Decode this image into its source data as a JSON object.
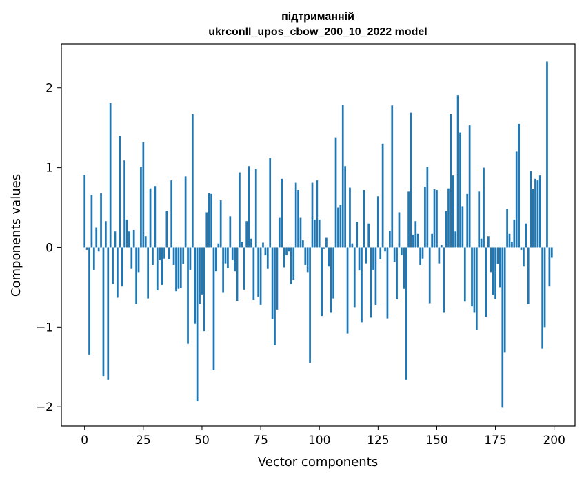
{
  "chart_data": {
    "type": "bar",
    "title": "підтриманній",
    "subtitle": "ukrconll_upos_cbow_200_10_2022 model",
    "xlabel": "Vector components",
    "ylabel": "Components values",
    "xlim": [
      -9.9,
      208.9
    ],
    "ylim": [
      -2.24,
      2.55
    ],
    "xticks": [
      0,
      25,
      50,
      75,
      100,
      125,
      150,
      175,
      200
    ],
    "yticks": [
      -2,
      -1,
      0,
      1,
      2
    ],
    "ytick_labels": [
      "−2",
      "−1",
      "0",
      "1",
      "2"
    ],
    "grid": false,
    "bar_color": "#1f77b4",
    "values": [
      0.91,
      -0.03,
      -1.35,
      0.66,
      -0.28,
      0.25,
      -0.05,
      0.68,
      -1.62,
      0.33,
      -1.66,
      1.81,
      -0.46,
      0.2,
      -0.63,
      1.4,
      -0.49,
      1.09,
      0.35,
      0.2,
      -0.27,
      0.22,
      -0.71,
      -0.31,
      1.01,
      1.32,
      0.14,
      -0.64,
      0.74,
      -0.22,
      0.77,
      -0.54,
      -0.16,
      -0.47,
      -0.14,
      0.46,
      -0.15,
      0.84,
      -0.22,
      -0.55,
      -0.52,
      -0.51,
      -0.21,
      0.89,
      -1.21,
      -0.28,
      1.67,
      -0.96,
      -1.93,
      -0.71,
      -0.59,
      -1.05,
      0.44,
      0.68,
      0.67,
      -1.54,
      -0.3,
      0.05,
      0.59,
      -0.57,
      -0.2,
      -0.26,
      0.39,
      -0.16,
      -0.3,
      -0.67,
      0.94,
      0.07,
      -0.53,
      0.33,
      1.02,
      0.11,
      -0.66,
      0.98,
      -0.62,
      -0.72,
      0.06,
      -0.1,
      -0.27,
      1.12,
      -0.9,
      -1.23,
      -0.78,
      0.37,
      0.86,
      -0.25,
      -0.1,
      -0.05,
      -0.46,
      -0.41,
      0.81,
      0.72,
      0.37,
      0.09,
      -0.22,
      -0.31,
      -1.45,
      0.81,
      0.35,
      0.84,
      0.35,
      -0.86,
      -0.02,
      0.12,
      -0.24,
      -0.82,
      -0.64,
      1.38,
      0.5,
      0.53,
      1.79,
      1.02,
      -1.08,
      0.75,
      0.05,
      -0.75,
      0.32,
      -0.29,
      -0.94,
      0.72,
      -0.2,
      0.3,
      -0.88,
      -0.28,
      -0.72,
      0.64,
      -0.15,
      1.3,
      -0.05,
      -0.89,
      0.21,
      1.78,
      -0.18,
      -0.65,
      0.44,
      -0.1,
      -0.52,
      -1.66,
      0.7,
      1.69,
      0.16,
      0.33,
      0.17,
      -0.22,
      -0.14,
      0.76,
      1.01,
      -0.7,
      0.17,
      0.73,
      0.72,
      -0.2,
      0.03,
      -0.82,
      0.46,
      0.74,
      1.67,
      0.9,
      0.2,
      1.91,
      1.44,
      0.51,
      -0.68,
      0.67,
      1.53,
      -0.74,
      -0.82,
      -1.04,
      0.7,
      0.11,
      1.0,
      -0.87,
      0.14,
      -0.31,
      -0.6,
      -0.65,
      -0.21,
      -0.5,
      -2.01,
      -1.32,
      0.48,
      0.17,
      0.07,
      0.35,
      1.2,
      1.55,
      -0.03,
      -0.24,
      0.3,
      -0.71,
      0.96,
      0.73,
      0.86,
      0.84,
      0.9,
      -1.27,
      -1.0,
      2.33,
      -0.49,
      -0.13
    ]
  }
}
